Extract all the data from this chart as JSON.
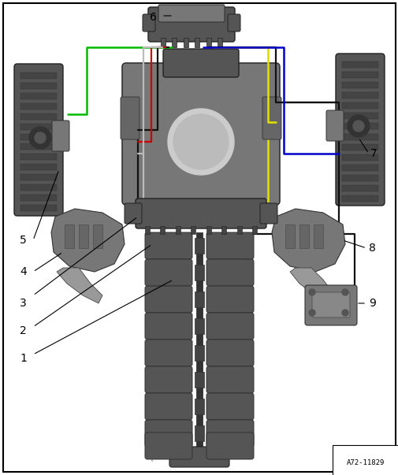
{
  "fig_width": 5.06,
  "fig_height": 6.03,
  "dpi": 100,
  "bg_color": "#ffffff",
  "border_color": "#000000",
  "title": "A72-11829",
  "comp_dark": "#555555",
  "comp_mid": "#777777",
  "comp_light": "#999999",
  "wire_green": "#00bb00",
  "wire_black": "#111111",
  "wire_red": "#cc0000",
  "wire_gray": "#bbbbbb",
  "wire_yellow": "#dddd00",
  "wire_blue": "#0000cc",
  "wire_magenta": "#cc00cc",
  "wire_pink": "#ff88cc",
  "lw": 1.6
}
